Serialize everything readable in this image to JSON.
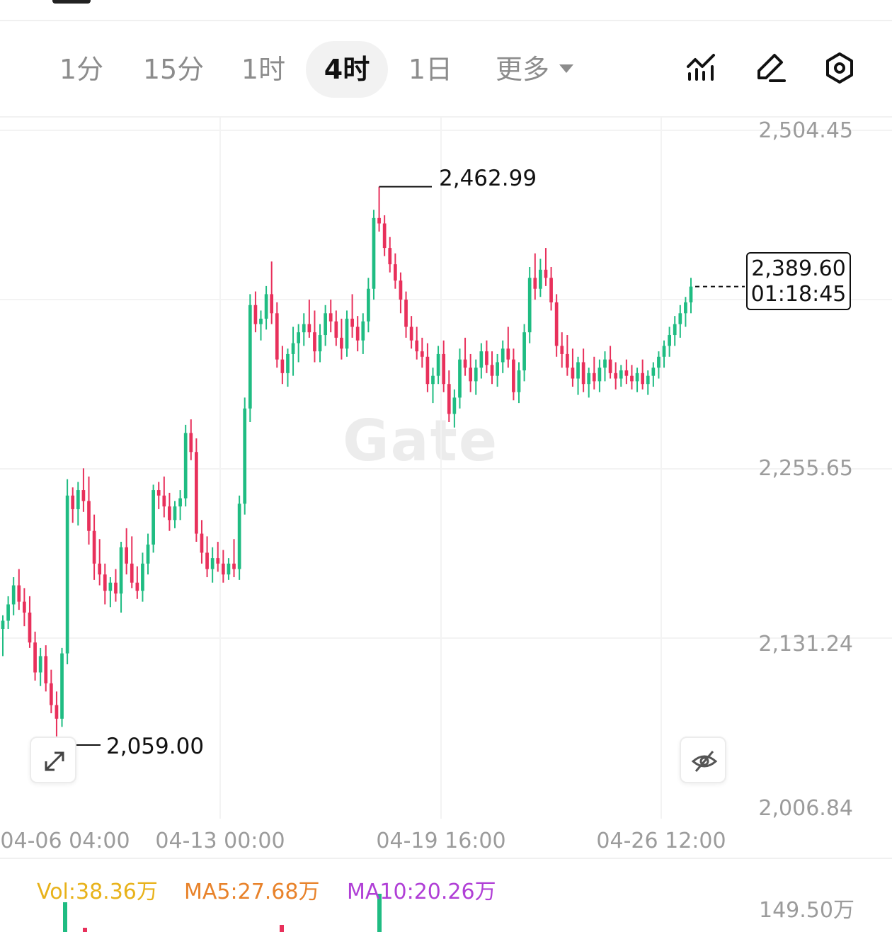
{
  "timeframes": {
    "items": [
      {
        "label": "1分",
        "active": false
      },
      {
        "label": "15分",
        "active": false
      },
      {
        "label": "1时",
        "active": false
      },
      {
        "label": "4时",
        "active": true
      },
      {
        "label": "1日",
        "active": false
      },
      {
        "label": "更多",
        "active": false,
        "dropdown": true
      }
    ]
  },
  "tools": {
    "icons": [
      "indicator-icon",
      "draw-pen-icon",
      "settings-gear-icon"
    ]
  },
  "chart": {
    "watermark": "Gate",
    "up_color": "#1fbc82",
    "down_color": "#e8305b",
    "price_axis": {
      "labels": [
        "2,504.45",
        "2,255.65",
        "2,131.24",
        "2,006.84"
      ]
    },
    "time_axis": {
      "labels": [
        "04-06 04:00",
        "04-13 00:00",
        "04-19 16:00",
        "04-26 12:00"
      ]
    },
    "high_marker": "2,462.99",
    "low_marker": "2,059.00",
    "current_price": "2,389.60",
    "countdown": "01:18:45",
    "volume": {
      "vol": "Vol:38.36万",
      "ma5": "MA5:27.68万",
      "ma10": "MA10:20.26万",
      "axis_label": "149.50万",
      "vol_color": "#e8b21a",
      "ma5_color": "#e8822a",
      "ma10_color": "#b03fd6"
    }
  },
  "chart_data": {
    "type": "candlestick",
    "timeframe": "4时",
    "x_labels": [
      "04-06 04:00",
      "04-13 00:00",
      "04-19 16:00",
      "04-26 12:00"
    ],
    "y_tick_labels": [
      "2,504.45",
      "2,255.65",
      "2,131.24",
      "2,006.84"
    ],
    "ylim": [
      2006.84,
      2504.45
    ],
    "high": 2462.99,
    "low": 2059.0,
    "last": 2389.6,
    "grid": true,
    "ohlc": [
      [
        2138,
        2148,
        2118,
        2144
      ],
      [
        2144,
        2162,
        2138,
        2156
      ],
      [
        2156,
        2176,
        2148,
        2170
      ],
      [
        2170,
        2182,
        2152,
        2158
      ],
      [
        2158,
        2168,
        2140,
        2150
      ],
      [
        2150,
        2162,
        2124,
        2128
      ],
      [
        2128,
        2136,
        2100,
        2106
      ],
      [
        2106,
        2124,
        2096,
        2118
      ],
      [
        2118,
        2126,
        2092,
        2098
      ],
      [
        2098,
        2108,
        2076,
        2082
      ],
      [
        2082,
        2092,
        2059,
        2072
      ],
      [
        2072,
        2124,
        2066,
        2120
      ],
      [
        2120,
        2248,
        2112,
        2236
      ],
      [
        2236,
        2242,
        2216,
        2226
      ],
      [
        2226,
        2246,
        2214,
        2240
      ],
      [
        2240,
        2256,
        2224,
        2232
      ],
      [
        2232,
        2250,
        2200,
        2210
      ],
      [
        2210,
        2222,
        2174,
        2186
      ],
      [
        2186,
        2204,
        2170,
        2178
      ],
      [
        2178,
        2186,
        2156,
        2166
      ],
      [
        2166,
        2176,
        2154,
        2172
      ],
      [
        2172,
        2182,
        2158,
        2164
      ],
      [
        2164,
        2202,
        2150,
        2198
      ],
      [
        2198,
        2212,
        2178,
        2186
      ],
      [
        2186,
        2206,
        2168,
        2172
      ],
      [
        2172,
        2184,
        2160,
        2166
      ],
      [
        2166,
        2194,
        2158,
        2186
      ],
      [
        2186,
        2208,
        2178,
        2200
      ],
      [
        2200,
        2244,
        2194,
        2240
      ],
      [
        2240,
        2246,
        2226,
        2236
      ],
      [
        2236,
        2250,
        2220,
        2228
      ],
      [
        2228,
        2238,
        2210,
        2218
      ],
      [
        2218,
        2232,
        2212,
        2228
      ],
      [
        2228,
        2240,
        2218,
        2234
      ],
      [
        2234,
        2288,
        2228,
        2282
      ],
      [
        2282,
        2292,
        2262,
        2268
      ],
      [
        2268,
        2278,
        2202,
        2208
      ],
      [
        2208,
        2218,
        2186,
        2194
      ],
      [
        2194,
        2206,
        2176,
        2182
      ],
      [
        2182,
        2198,
        2172,
        2190
      ],
      [
        2190,
        2202,
        2180,
        2186
      ],
      [
        2186,
        2196,
        2172,
        2178
      ],
      [
        2178,
        2190,
        2174,
        2186
      ],
      [
        2186,
        2204,
        2176,
        2182
      ],
      [
        2182,
        2236,
        2174,
        2230
      ],
      [
        2230,
        2308,
        2222,
        2300
      ],
      [
        2300,
        2384,
        2290,
        2376
      ],
      [
        2376,
        2386,
        2356,
        2362
      ],
      [
        2362,
        2372,
        2350,
        2366
      ],
      [
        2366,
        2390,
        2358,
        2384
      ],
      [
        2384,
        2408,
        2362,
        2370
      ],
      [
        2370,
        2378,
        2330,
        2336
      ],
      [
        2336,
        2346,
        2318,
        2326
      ],
      [
        2326,
        2344,
        2316,
        2340
      ],
      [
        2340,
        2360,
        2324,
        2348
      ],
      [
        2348,
        2362,
        2334,
        2356
      ],
      [
        2356,
        2370,
        2346,
        2362
      ],
      [
        2362,
        2380,
        2352,
        2356
      ],
      [
        2356,
        2372,
        2334,
        2342
      ],
      [
        2342,
        2362,
        2334,
        2354
      ],
      [
        2354,
        2376,
        2346,
        2370
      ],
      [
        2370,
        2380,
        2356,
        2364
      ],
      [
        2364,
        2372,
        2346,
        2352
      ],
      [
        2352,
        2366,
        2336,
        2344
      ],
      [
        2344,
        2372,
        2338,
        2366
      ],
      [
        2366,
        2384,
        2352,
        2360
      ],
      [
        2360,
        2368,
        2342,
        2350
      ],
      [
        2350,
        2370,
        2340,
        2364
      ],
      [
        2364,
        2396,
        2356,
        2388
      ],
      [
        2388,
        2446,
        2380,
        2440
      ],
      [
        2440,
        2463,
        2430,
        2436
      ],
      [
        2436,
        2442,
        2412,
        2418
      ],
      [
        2418,
        2426,
        2400,
        2406
      ],
      [
        2406,
        2414,
        2388,
        2394
      ],
      [
        2394,
        2400,
        2370,
        2380
      ],
      [
        2380,
        2386,
        2352,
        2360
      ],
      [
        2360,
        2368,
        2344,
        2350
      ],
      [
        2350,
        2360,
        2336,
        2342
      ],
      [
        2342,
        2352,
        2330,
        2338
      ],
      [
        2338,
        2348,
        2312,
        2318
      ],
      [
        2318,
        2330,
        2304,
        2324
      ],
      [
        2324,
        2346,
        2318,
        2340
      ],
      [
        2340,
        2350,
        2312,
        2318
      ],
      [
        2318,
        2328,
        2290,
        2296
      ],
      [
        2296,
        2314,
        2286,
        2308
      ],
      [
        2308,
        2344,
        2300,
        2336
      ],
      [
        2336,
        2352,
        2324,
        2330
      ],
      [
        2330,
        2340,
        2312,
        2320
      ],
      [
        2320,
        2336,
        2310,
        2330
      ],
      [
        2330,
        2348,
        2322,
        2342
      ],
      [
        2342,
        2350,
        2326,
        2332
      ],
      [
        2332,
        2342,
        2318,
        2324
      ],
      [
        2324,
        2340,
        2316,
        2334
      ],
      [
        2334,
        2350,
        2326,
        2344
      ],
      [
        2344,
        2360,
        2330,
        2336
      ],
      [
        2336,
        2344,
        2306,
        2312
      ],
      [
        2312,
        2334,
        2304,
        2328
      ],
      [
        2328,
        2362,
        2320,
        2356
      ],
      [
        2356,
        2404,
        2348,
        2396
      ],
      [
        2396,
        2414,
        2380,
        2388
      ],
      [
        2388,
        2410,
        2382,
        2402
      ],
      [
        2402,
        2418,
        2390,
        2396
      ],
      [
        2396,
        2404,
        2372,
        2378
      ],
      [
        2378,
        2384,
        2338,
        2346
      ],
      [
        2346,
        2356,
        2330,
        2340
      ],
      [
        2340,
        2354,
        2324,
        2330
      ],
      [
        2330,
        2344,
        2316,
        2322
      ],
      [
        2322,
        2338,
        2310,
        2334
      ],
      [
        2334,
        2344,
        2312,
        2318
      ],
      [
        2318,
        2330,
        2308,
        2326
      ],
      [
        2326,
        2338,
        2314,
        2320
      ],
      [
        2320,
        2336,
        2312,
        2330
      ],
      [
        2330,
        2342,
        2320,
        2336
      ],
      [
        2336,
        2346,
        2322,
        2326
      ],
      [
        2326,
        2334,
        2314,
        2322
      ],
      [
        2322,
        2332,
        2316,
        2328
      ],
      [
        2328,
        2336,
        2318,
        2324
      ],
      [
        2324,
        2332,
        2314,
        2320
      ],
      [
        2320,
        2330,
        2312,
        2326
      ],
      [
        2326,
        2336,
        2314,
        2318
      ],
      [
        2318,
        2328,
        2310,
        2324
      ],
      [
        2324,
        2334,
        2316,
        2330
      ],
      [
        2330,
        2342,
        2322,
        2338
      ],
      [
        2338,
        2350,
        2330,
        2346
      ],
      [
        2346,
        2360,
        2338,
        2354
      ],
      [
        2354,
        2368,
        2346,
        2362
      ],
      [
        2362,
        2376,
        2352,
        2370
      ],
      [
        2370,
        2382,
        2360,
        2378
      ],
      [
        2378,
        2396,
        2370,
        2389.6
      ]
    ],
    "volume_legend": {
      "vol": "38.36万",
      "ma5": "27.68万",
      "ma10": "20.26万"
    },
    "volume_axis_top": "149.50万"
  }
}
